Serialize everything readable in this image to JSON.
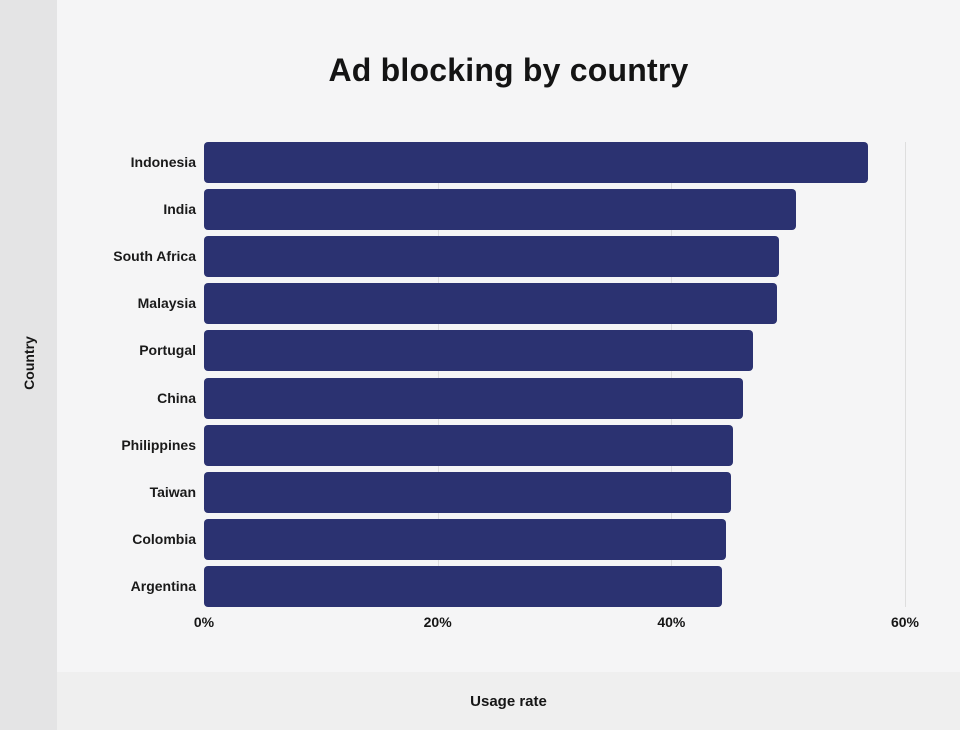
{
  "title": "Ad blocking by country",
  "x_axis_title": "Usage rate",
  "y_axis_title": "Country",
  "colors": {
    "bar": "#2b3271",
    "main_background": "#f5f5f6",
    "sidebar_background": "#e4e4e5",
    "footer_background": "#efefef",
    "gridline": "#dedede",
    "text": "#161616"
  },
  "chart_data": {
    "type": "bar",
    "orientation": "horizontal",
    "title": "Ad blocking by country",
    "xlabel": "Usage rate",
    "ylabel": "Country",
    "categories": [
      "Indonesia",
      "India",
      "South Africa",
      "Malaysia",
      "Portugal",
      "China",
      "Philippines",
      "Taiwan",
      "Colombia",
      "Argentina"
    ],
    "values": [
      56.8,
      50.7,
      49.2,
      49.0,
      47.0,
      46.1,
      45.3,
      45.1,
      44.7,
      44.3
    ],
    "xlim": [
      0,
      60
    ],
    "x_ticks": [
      {
        "value": 0,
        "label": "0%"
      },
      {
        "value": 20,
        "label": "20%"
      },
      {
        "value": 40,
        "label": "40%"
      },
      {
        "value": 60,
        "label": "60%"
      }
    ],
    "grid": true,
    "gridlines_at": [
      20,
      40,
      60
    ],
    "legend": false,
    "bar_color": "#2b3271"
  }
}
